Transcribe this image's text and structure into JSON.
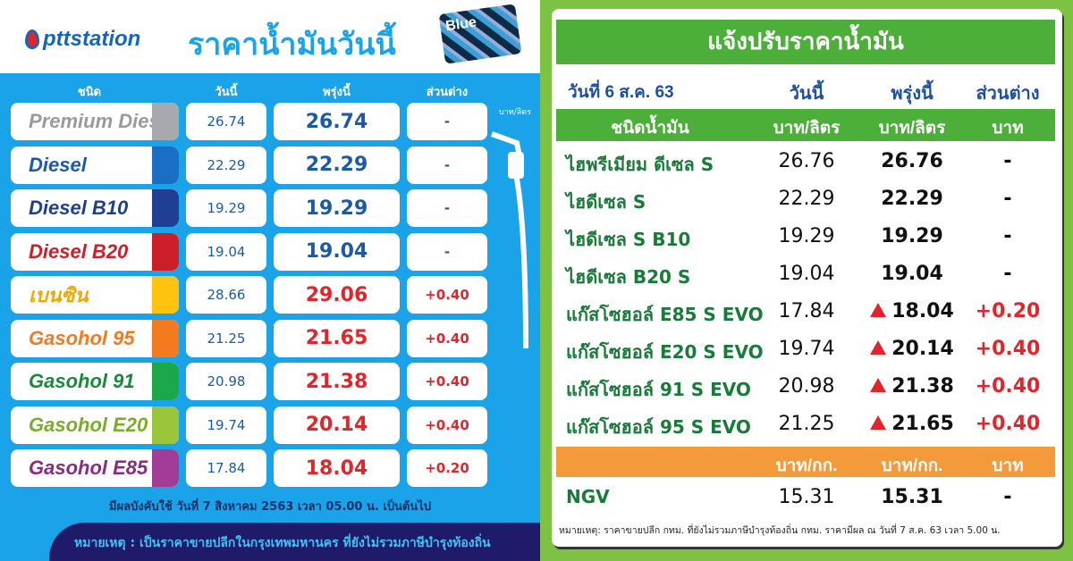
{
  "left": {
    "brand": "pttstation",
    "title": "ราคาน้ำมันวันนี้",
    "card_label": "Blue",
    "headers": {
      "type": "ชนิด",
      "today": "วันนี้",
      "tomorrow": "พรุ่งนี้",
      "diff": "ส่วนต่าง",
      "unit": "บาท/ลิตร"
    },
    "rows": [
      {
        "name": "Premium Diesel",
        "today": "26.74",
        "tomorrow": "26.74",
        "diff": "-",
        "color": "#a7a9ac",
        "name_color": "#9a9a9a",
        "price_color": "#1a5aa8"
      },
      {
        "name": "Diesel",
        "today": "22.29",
        "tomorrow": "22.29",
        "diff": "-",
        "color": "#1a6fc4",
        "name_color": "#1a5aa8",
        "price_color": "#1a5aa8"
      },
      {
        "name": "Diesel B10",
        "today": "19.29",
        "tomorrow": "19.29",
        "diff": "-",
        "color": "#1e3f94",
        "name_color": "#1e3f94",
        "price_color": "#1a5aa8"
      },
      {
        "name": "Diesel B20",
        "today": "19.04",
        "tomorrow": "19.04",
        "diff": "-",
        "color": "#cc1f2a",
        "name_color": "#cc1f2a",
        "price_color": "#1a5aa8"
      },
      {
        "name": "เบนซิน",
        "today": "28.66",
        "tomorrow": "29.06",
        "diff": "+0.40",
        "color": "#ffc20e",
        "name_color": "#f0a800",
        "price_color": "#e0262c"
      },
      {
        "name": "Gasohol 95",
        "today": "21.25",
        "tomorrow": "21.65",
        "diff": "+0.40",
        "color": "#f47a20",
        "name_color": "#f47a20",
        "price_color": "#e0262c"
      },
      {
        "name": "Gasohol 91",
        "today": "20.98",
        "tomorrow": "21.38",
        "diff": "+0.40",
        "color": "#1aa84b",
        "name_color": "#1a8a3a",
        "price_color": "#e0262c"
      },
      {
        "name": "Gasohol E20",
        "today": "19.74",
        "tomorrow": "20.14",
        "diff": "+0.40",
        "color": "#9bc63b",
        "name_color": "#7aae2a",
        "price_color": "#e0262c"
      },
      {
        "name": "Gasohol E85",
        "today": "17.84",
        "tomorrow": "18.04",
        "diff": "+0.20",
        "color": "#a23c96",
        "name_color": "#8a2a80",
        "price_color": "#e0262c"
      }
    ],
    "effective": "มีผลบังคับใช้ วันที่ 7 สิงหาคม 2563 เวลา 05.00 น. เป็นต้นไป",
    "note": "หมายเหตุ : เป็นราคาขายปลีกในกรุงเทพมหานคร ที่ยังไม่รวมภาษีบำรุงท้องถิ่น"
  },
  "right": {
    "title": "แจ้งปรับราคาน้ำมัน",
    "date": "วันที่ 6 ส.ค. 63",
    "h_today": "วันนี้",
    "h_tomorrow": "พรุ่งนี้",
    "h_diff": "ส่วนต่าง",
    "sub": {
      "type": "ชนิดน้ำมัน",
      "today": "บาท/ลิตร",
      "tomorrow": "บาท/ลิตร",
      "diff": "บาท"
    },
    "rows": [
      {
        "name": "ไฮพรีเมียม ดีเซล S",
        "today": "26.76",
        "tomorrow": "26.76",
        "diff": "-",
        "up": false
      },
      {
        "name": "ไฮดีเซล S",
        "today": "22.29",
        "tomorrow": "22.29",
        "diff": "-",
        "up": false
      },
      {
        "name": "ไฮดีเซล S B10",
        "today": "19.29",
        "tomorrow": "19.29",
        "diff": "-",
        "up": false
      },
      {
        "name": "ไฮดีเซล B20 S",
        "today": "19.04",
        "tomorrow": "19.04",
        "diff": "-",
        "up": false
      },
      {
        "name": "แก๊สโซฮอล์ E85 S EVO",
        "today": "17.84",
        "tomorrow": "18.04",
        "diff": "+0.20",
        "up": true
      },
      {
        "name": "แก๊สโซฮอล์ E20 S EVO",
        "today": "19.74",
        "tomorrow": "20.14",
        "diff": "+0.40",
        "up": true
      },
      {
        "name": "แก๊สโซฮอล์ 91 S EVO",
        "today": "20.98",
        "tomorrow": "21.38",
        "diff": "+0.40",
        "up": true
      },
      {
        "name": "แก๊สโซฮอล์ 95 S  EVO",
        "today": "21.25",
        "tomorrow": "21.65",
        "diff": "+0.40",
        "up": true
      }
    ],
    "sub2": {
      "today": "บาท/กก.",
      "tomorrow": "บาท/กก.",
      "diff": "บาท"
    },
    "ngv": {
      "name": "NGV",
      "today": "15.31",
      "tomorrow": "15.31",
      "diff": "-"
    },
    "note": "หมายเหตุ:  ราคาขายปลีก กทม. ที่ยังไม่รวมภาษีบำรุงท้องถิ่น กทม.  ราคามีผล ณ วันที่ 7 ส.ค. 63 เวลา 5.00 น."
  }
}
